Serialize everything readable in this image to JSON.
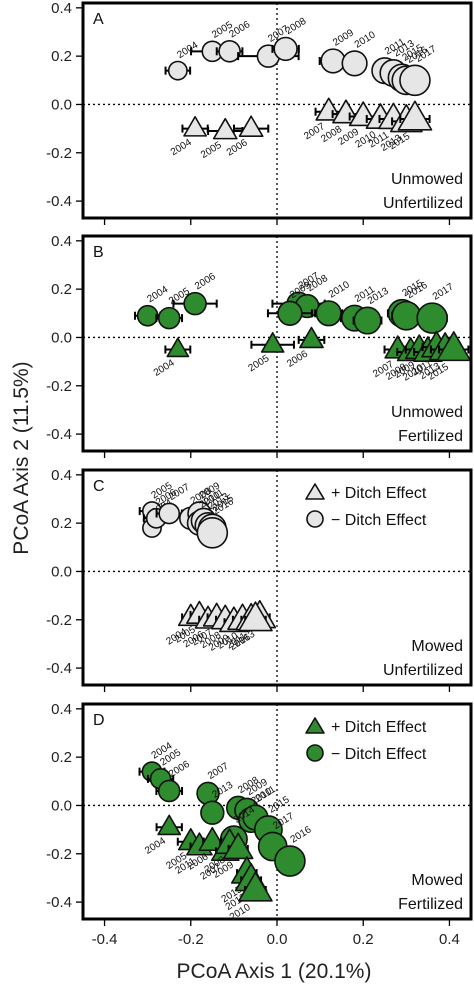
{
  "figure": {
    "xlabel": "PCoA Axis 1 (20.1%)",
    "ylabel": "PCoA Axis 2 (11.5%)"
  },
  "colors": {
    "grey": "#e6e6e6",
    "green": "#2e8b2e",
    "stroke": "#111111"
  },
  "chart_data": [
    {
      "type": "scatter",
      "tag": "A",
      "treatment": [
        "Unmowed",
        "Unfertilized"
      ],
      "fill": "#e6e6e6",
      "xlim": [
        -0.45,
        0.45
      ],
      "ylim": [
        -0.47,
        0.42
      ],
      "xticks": [
        -0.4,
        -0.2,
        0.0,
        0.2,
        0.4
      ],
      "yticks": [
        -0.4,
        -0.2,
        0.0,
        0.2,
        0.4
      ],
      "xtick_labels": [
        "-0.4",
        "-0.2",
        "0.0",
        "0.2",
        "0.4"
      ],
      "ytick_labels": [
        "-0.4",
        "-0.2",
        "0.0",
        "0.2",
        "0.4"
      ],
      "show_xticklabels": false,
      "legend": null,
      "series": [
        {
          "name": "- Ditch Effect",
          "marker": "circle",
          "points": [
            {
              "x": -0.23,
              "y": 0.14,
              "year": "2004",
              "size": 0.35,
              "err": 0.02
            },
            {
              "x": -0.15,
              "y": 0.22,
              "year": "2005",
              "size": 0.45,
              "err": 0.04
            },
            {
              "x": -0.11,
              "y": 0.22,
              "year": "2006",
              "size": 0.5,
              "err": 0.02
            },
            {
              "x": -0.02,
              "y": 0.2,
              "year": "2007",
              "size": 0.55,
              "err": 0.06
            },
            {
              "x": 0.02,
              "y": 0.23,
              "year": "2008",
              "size": 0.6,
              "err": 0.02
            },
            {
              "x": 0.13,
              "y": 0.18,
              "year": "2009",
              "size": 0.65,
              "err": 0.02
            },
            {
              "x": 0.18,
              "y": 0.17,
              "year": "2010",
              "size": 0.7,
              "err": 0.01
            },
            {
              "x": 0.25,
              "y": 0.14,
              "year": "2011",
              "size": 0.75,
              "err": 0.01
            },
            {
              "x": 0.27,
              "y": 0.13,
              "year": "2013",
              "size": 0.8,
              "err": 0.01
            },
            {
              "x": 0.29,
              "y": 0.11,
              "year": "2015",
              "size": 0.85,
              "err": 0.01
            },
            {
              "x": 0.3,
              "y": 0.1,
              "year": "2016",
              "size": 0.9,
              "err": 0.01
            },
            {
              "x": 0.32,
              "y": 0.1,
              "year": "2017",
              "size": 1.0,
              "err": 0.01
            }
          ]
        },
        {
          "name": "+ Ditch Effect",
          "marker": "triangle",
          "points": [
            {
              "x": -0.19,
              "y": -0.1,
              "year": "2004",
              "size": 0.45,
              "err": 0.02
            },
            {
              "x": -0.12,
              "y": -0.11,
              "year": "2005",
              "size": 0.5,
              "err": 0.03
            },
            {
              "x": -0.06,
              "y": -0.1,
              "year": "2006",
              "size": 0.5,
              "err": 0.03
            },
            {
              "x": 0.12,
              "y": -0.03,
              "year": "2007",
              "size": 0.6,
              "err": 0.02
            },
            {
              "x": 0.16,
              "y": -0.04,
              "year": "2008",
              "size": 0.65,
              "err": 0.02
            },
            {
              "x": 0.2,
              "y": -0.05,
              "year": "2009",
              "size": 0.7,
              "err": 0.02
            },
            {
              "x": 0.24,
              "y": -0.06,
              "year": "2010",
              "size": 0.75,
              "err": 0.02
            },
            {
              "x": 0.27,
              "y": -0.06,
              "year": "2011",
              "size": 0.8,
              "err": 0.02
            },
            {
              "x": 0.3,
              "y": -0.07,
              "year": "2013",
              "size": 0.9,
              "err": 0.02
            },
            {
              "x": 0.32,
              "y": -0.06,
              "year": "2015",
              "size": 1.0,
              "err": 0.02
            }
          ]
        }
      ]
    },
    {
      "type": "scatter",
      "tag": "B",
      "treatment": [
        "Unmowed",
        "Fertilized"
      ],
      "fill": "#2e8b2e",
      "xlim": [
        -0.45,
        0.45
      ],
      "ylim": [
        -0.47,
        0.42
      ],
      "xticks": [
        -0.4,
        -0.2,
        0.0,
        0.2,
        0.4
      ],
      "yticks": [
        -0.4,
        -0.2,
        0.0,
        0.2,
        0.4
      ],
      "xtick_labels": [
        "-0.4",
        "-0.2",
        "0.0",
        "0.2",
        "0.4"
      ],
      "ytick_labels": [
        "-0.4",
        "-0.2",
        "0.0",
        "0.2",
        "0.4"
      ],
      "show_xticklabels": false,
      "legend": null,
      "series": [
        {
          "name": "- Ditch Effect",
          "marker": "circle",
          "points": [
            {
              "x": -0.3,
              "y": 0.09,
              "year": "2004",
              "size": 0.45,
              "err": 0.02
            },
            {
              "x": -0.25,
              "y": 0.08,
              "year": "2005",
              "size": 0.5,
              "err": 0.02
            },
            {
              "x": -0.19,
              "y": 0.14,
              "year": "2006",
              "size": 0.55,
              "err": 0.04
            },
            {
              "x": 0.05,
              "y": 0.14,
              "year": "2007",
              "size": 0.6,
              "err": 0.05
            },
            {
              "x": 0.07,
              "y": 0.13,
              "year": "2008",
              "size": 0.6,
              "err": 0.04
            },
            {
              "x": 0.03,
              "y": 0.1,
              "year": "2009",
              "size": 0.65,
              "err": 0.04
            },
            {
              "x": 0.12,
              "y": 0.1,
              "year": "2010",
              "size": 0.7,
              "err": 0.02
            },
            {
              "x": 0.18,
              "y": 0.08,
              "year": "2011",
              "size": 0.75,
              "err": 0.02
            },
            {
              "x": 0.21,
              "y": 0.07,
              "year": "2013",
              "size": 0.8,
              "err": 0.02
            },
            {
              "x": 0.29,
              "y": 0.1,
              "year": "2015",
              "size": 0.85,
              "err": 0.02
            },
            {
              "x": 0.3,
              "y": 0.09,
              "year": "2016",
              "size": 0.9,
              "err": 0.02
            },
            {
              "x": 0.36,
              "y": 0.08,
              "year": "2017",
              "size": 1.0,
              "err": 0.02
            }
          ]
        },
        {
          "name": "+ Ditch Effect",
          "marker": "triangle",
          "points": [
            {
              "x": -0.23,
              "y": -0.05,
              "year": "2004",
              "size": 0.4,
              "err": 0.02
            },
            {
              "x": -0.01,
              "y": -0.03,
              "year": "2005",
              "size": 0.45,
              "err": 0.04
            },
            {
              "x": 0.08,
              "y": -0.01,
              "year": "2006",
              "size": 0.5,
              "err": 0.02
            },
            {
              "x": 0.28,
              "y": -0.05,
              "year": "2007",
              "size": 0.6,
              "err": 0.02
            },
            {
              "x": 0.31,
              "y": -0.06,
              "year": "2008",
              "size": 0.65,
              "err": 0.02
            },
            {
              "x": 0.33,
              "y": -0.05,
              "year": "2009",
              "size": 0.7,
              "err": 0.02
            },
            {
              "x": 0.35,
              "y": -0.06,
              "year": "2010",
              "size": 0.75,
              "err": 0.02
            },
            {
              "x": 0.37,
              "y": -0.04,
              "year": "2011",
              "size": 0.8,
              "err": 0.02
            },
            {
              "x": 0.39,
              "y": -0.05,
              "year": "2013",
              "size": 0.9,
              "err": 0.02
            },
            {
              "x": 0.41,
              "y": -0.05,
              "year": "2015",
              "size": 1.0,
              "err": 0.02
            }
          ]
        }
      ]
    },
    {
      "type": "scatter",
      "tag": "C",
      "treatment": [
        "Mowed",
        "Unfertilized"
      ],
      "fill": "#e6e6e6",
      "xlim": [
        -0.45,
        0.45
      ],
      "ylim": [
        -0.47,
        0.42
      ],
      "xticks": [
        -0.4,
        -0.2,
        0.0,
        0.2,
        0.4
      ],
      "yticks": [
        -0.4,
        -0.2,
        0.0,
        0.2,
        0.4
      ],
      "xtick_labels": [
        "-0.4",
        "-0.2",
        "0.0",
        "0.2",
        "0.4"
      ],
      "ytick_labels": [
        "-0.4",
        "-0.2",
        "0.0",
        "0.2",
        "0.4"
      ],
      "show_xticklabels": false,
      "legend": {
        "position": "top-right",
        "entries": [
          {
            "marker": "triangle",
            "label": "+ Ditch Effect"
          },
          {
            "marker": "circle",
            "label": "− Ditch Effect"
          }
        ]
      },
      "series": [
        {
          "name": "- Ditch Effect",
          "marker": "circle",
          "points": [
            {
              "x": -0.29,
              "y": 0.25,
              "year": "2005",
              "size": 0.35,
              "err": 0.02
            },
            {
              "x": -0.28,
              "y": 0.22,
              "year": "2006",
              "size": 0.4,
              "err": 0.02
            },
            {
              "x": -0.25,
              "y": 0.24,
              "year": "2007",
              "size": 0.45,
              "err": 0.02
            },
            {
              "x": -0.29,
              "y": 0.18,
              "year": "2004",
              "size": 0.35,
              "err": 0.01
            },
            {
              "x": -0.2,
              "y": 0.22,
              "year": "2008",
              "size": 0.55,
              "err": 0.01
            },
            {
              "x": -0.18,
              "y": 0.24,
              "year": "2009",
              "size": 0.6,
              "err": 0.01
            },
            {
              "x": -0.18,
              "y": 0.2,
              "year": "2010",
              "size": 0.65,
              "err": 0.01
            },
            {
              "x": -0.17,
              "y": 0.21,
              "year": "2011",
              "size": 0.7,
              "err": 0.01
            },
            {
              "x": -0.16,
              "y": 0.19,
              "year": "2013",
              "size": 0.75,
              "err": 0.01
            },
            {
              "x": -0.15,
              "y": 0.18,
              "year": "2015",
              "size": 0.85,
              "err": 0.01
            },
            {
              "x": -0.15,
              "y": 0.16,
              "year": "2016",
              "size": 1.0,
              "err": 0.01
            }
          ]
        },
        {
          "name": "+ Ditch Effect",
          "marker": "triangle",
          "points": [
            {
              "x": -0.2,
              "y": -0.19,
              "year": "2004",
              "size": 0.55,
              "err": 0.01
            },
            {
              "x": -0.18,
              "y": -0.18,
              "year": "2005",
              "size": 0.6,
              "err": 0.01
            },
            {
              "x": -0.16,
              "y": -0.2,
              "year": "2006",
              "size": 0.6,
              "err": 0.01
            },
            {
              "x": -0.14,
              "y": -0.19,
              "year": "2007",
              "size": 0.65,
              "err": 0.01
            },
            {
              "x": -0.12,
              "y": -0.2,
              "year": "2008",
              "size": 0.7,
              "err": 0.01
            },
            {
              "x": -0.1,
              "y": -0.21,
              "year": "2009",
              "size": 0.75,
              "err": 0.01
            },
            {
              "x": -0.08,
              "y": -0.2,
              "year": "2010",
              "size": 0.8,
              "err": 0.01
            },
            {
              "x": -0.06,
              "y": -0.2,
              "year": "2011",
              "size": 0.85,
              "err": 0.01
            },
            {
              "x": -0.04,
              "y": -0.19,
              "year": "2013",
              "size": 0.9,
              "err": 0.01
            },
            {
              "x": -0.05,
              "y": -0.2,
              "year": "2016",
              "size": 1.0,
              "err": 0.01
            }
          ]
        }
      ]
    },
    {
      "type": "scatter",
      "tag": "D",
      "treatment": [
        "Mowed",
        "Fertilized"
      ],
      "fill": "#2e8b2e",
      "xlim": [
        -0.45,
        0.45
      ],
      "ylim": [
        -0.47,
        0.42
      ],
      "xticks": [
        -0.4,
        -0.2,
        0.0,
        0.2,
        0.4
      ],
      "yticks": [
        -0.4,
        -0.2,
        0.0,
        0.2,
        0.4
      ],
      "xtick_labels": [
        "-0.4",
        "-0.2",
        "0.0",
        "0.2",
        "0.4"
      ],
      "ytick_labels": [
        "-0.4",
        "-0.2",
        "0.0",
        "0.2",
        "0.4"
      ],
      "show_xticklabels": true,
      "legend": {
        "position": "top-right",
        "entries": [
          {
            "marker": "triangle",
            "label": "+ Ditch Effect"
          },
          {
            "marker": "circle",
            "label": "− Ditch Effect"
          }
        ]
      },
      "series": [
        {
          "name": "- Ditch Effect",
          "marker": "circle",
          "points": [
            {
              "x": -0.29,
              "y": 0.14,
              "year": "2004",
              "size": 0.4,
              "err": 0.02
            },
            {
              "x": -0.27,
              "y": 0.11,
              "year": "2005",
              "size": 0.45,
              "err": 0.02
            },
            {
              "x": -0.25,
              "y": 0.06,
              "year": "2006",
              "size": 0.5,
              "err": 0.02
            },
            {
              "x": -0.16,
              "y": 0.05,
              "year": "2007",
              "size": 0.55,
              "err": 0.01
            },
            {
              "x": -0.15,
              "y": -0.03,
              "year": "2013",
              "size": 0.6,
              "err": 0.01
            },
            {
              "x": -0.09,
              "y": -0.01,
              "year": "2008",
              "size": 0.6,
              "err": 0.01
            },
            {
              "x": -0.07,
              "y": -0.02,
              "year": "2009",
              "size": 0.65,
              "err": 0.01
            },
            {
              "x": -0.06,
              "y": -0.06,
              "year": "2010",
              "size": 0.7,
              "err": 0.01
            },
            {
              "x": -0.05,
              "y": -0.05,
              "year": "2011",
              "size": 0.7,
              "err": 0.01
            },
            {
              "x": -0.1,
              "y": -0.14,
              "year": "2014",
              "size": 0.8,
              "err": 0.01
            },
            {
              "x": -0.02,
              "y": -0.1,
              "year": "2015",
              "size": 0.85,
              "err": 0.01
            },
            {
              "x": -0.01,
              "y": -0.17,
              "year": "2017",
              "size": 0.9,
              "err": 0.01
            },
            {
              "x": 0.03,
              "y": -0.23,
              "year": "2016",
              "size": 1.0,
              "err": 0.01
            }
          ]
        },
        {
          "name": "+ Ditch Effect",
          "marker": "triangle",
          "points": [
            {
              "x": -0.25,
              "y": -0.09,
              "year": "2004",
              "size": 0.45,
              "err": 0.02
            },
            {
              "x": -0.2,
              "y": -0.15,
              "year": "2005",
              "size": 0.55,
              "err": 0.02
            },
            {
              "x": -0.18,
              "y": -0.17,
              "year": "2011",
              "size": 0.6,
              "err": 0.01
            },
            {
              "x": -0.15,
              "y": -0.15,
              "year": "2006",
              "size": 0.65,
              "err": 0.01
            },
            {
              "x": -0.12,
              "y": -0.19,
              "year": "2007",
              "size": 0.7,
              "err": 0.01
            },
            {
              "x": -0.11,
              "y": -0.16,
              "year": "2008",
              "size": 0.75,
              "err": 0.01
            },
            {
              "x": -0.09,
              "y": -0.18,
              "year": "2009",
              "size": 0.8,
              "err": 0.01
            },
            {
              "x": -0.07,
              "y": -0.28,
              "year": "2015",
              "size": 0.85,
              "err": 0.01
            },
            {
              "x": -0.06,
              "y": -0.31,
              "year": "2013",
              "size": 0.9,
              "err": 0.01
            },
            {
              "x": -0.05,
              "y": -0.35,
              "year": "2010",
              "size": 1.0,
              "err": 0.01
            }
          ]
        }
      ]
    }
  ]
}
